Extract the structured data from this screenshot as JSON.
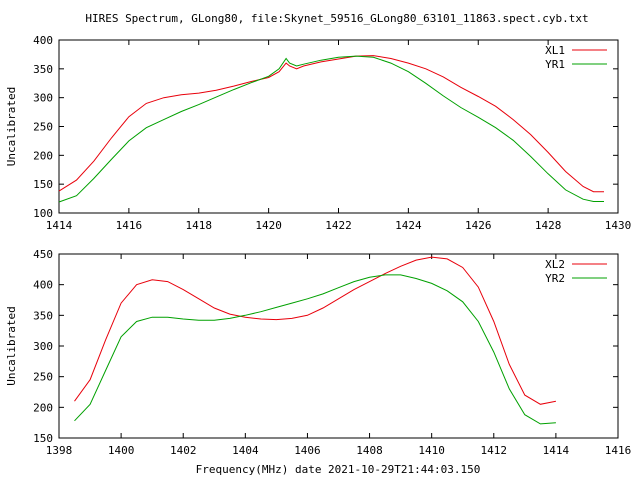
{
  "title": "HIRES Spectrum, GLong80, file:Skynet_59516_GLong80_63101_11863.spect.cyb.txt",
  "xlabel": "Frequency(MHz) date 2021-10-29T21:44:03.150",
  "chart_data": [
    {
      "type": "line",
      "ylabel": "Uncalibrated",
      "xlim": [
        1414,
        1430
      ],
      "ylim": [
        100,
        400
      ],
      "xticks": [
        1414,
        1416,
        1418,
        1420,
        1422,
        1424,
        1426,
        1428,
        1430
      ],
      "yticks": [
        100,
        150,
        200,
        250,
        300,
        350,
        400
      ],
      "legend_position": "top-right",
      "series": [
        {
          "name": "XL1",
          "color": "#e8000b",
          "x": [
            1414.0,
            1414.5,
            1415.0,
            1415.5,
            1416.0,
            1416.5,
            1417.0,
            1417.5,
            1418.0,
            1418.5,
            1419.0,
            1419.5,
            1420.0,
            1420.3,
            1420.5,
            1420.6,
            1420.8,
            1421.0,
            1421.5,
            1422.0,
            1422.5,
            1423.0,
            1423.5,
            1424.0,
            1424.5,
            1425.0,
            1425.5,
            1426.0,
            1426.5,
            1427.0,
            1427.5,
            1428.0,
            1428.5,
            1429.0,
            1429.3,
            1429.6
          ],
          "y": [
            138,
            157,
            190,
            230,
            267,
            290,
            300,
            305,
            308,
            313,
            320,
            328,
            335,
            345,
            360,
            355,
            350,
            355,
            362,
            367,
            372,
            373,
            368,
            360,
            350,
            336,
            318,
            302,
            285,
            262,
            236,
            205,
            172,
            146,
            137,
            137
          ]
        },
        {
          "name": "YR1",
          "color": "#00a000",
          "x": [
            1414.0,
            1414.5,
            1415.0,
            1415.5,
            1416.0,
            1416.5,
            1417.0,
            1417.5,
            1418.0,
            1418.5,
            1419.0,
            1419.5,
            1420.0,
            1420.3,
            1420.5,
            1420.6,
            1420.8,
            1421.0,
            1421.5,
            1422.0,
            1422.5,
            1423.0,
            1423.5,
            1424.0,
            1424.5,
            1425.0,
            1425.5,
            1426.0,
            1426.5,
            1427.0,
            1427.5,
            1428.0,
            1428.5,
            1429.0,
            1429.3,
            1429.6
          ],
          "y": [
            119,
            130,
            160,
            193,
            225,
            248,
            262,
            276,
            288,
            301,
            314,
            326,
            337,
            350,
            368,
            360,
            355,
            358,
            365,
            370,
            372,
            370,
            360,
            345,
            325,
            303,
            283,
            266,
            248,
            226,
            198,
            168,
            140,
            124,
            120,
            120
          ]
        }
      ]
    },
    {
      "type": "line",
      "ylabel": "Uncalibrated",
      "xlim": [
        1398,
        1416
      ],
      "ylim": [
        150,
        450
      ],
      "xticks": [
        1398,
        1400,
        1402,
        1404,
        1406,
        1408,
        1410,
        1412,
        1414,
        1416
      ],
      "yticks": [
        150,
        200,
        250,
        300,
        350,
        400,
        450
      ],
      "legend_position": "top-right",
      "series": [
        {
          "name": "XL2",
          "color": "#e8000b",
          "x": [
            1398.5,
            1399.0,
            1399.5,
            1400.0,
            1400.5,
            1401.0,
            1401.5,
            1402.0,
            1402.5,
            1403.0,
            1403.5,
            1404.0,
            1404.5,
            1405.0,
            1405.5,
            1406.0,
            1406.5,
            1407.0,
            1407.5,
            1408.0,
            1408.5,
            1409.0,
            1409.5,
            1410.0,
            1410.5,
            1411.0,
            1411.5,
            1412.0,
            1412.5,
            1413.0,
            1413.5,
            1414.0
          ],
          "y": [
            210,
            245,
            310,
            370,
            400,
            408,
            405,
            392,
            377,
            362,
            352,
            347,
            344,
            343,
            345,
            350,
            362,
            377,
            392,
            405,
            418,
            430,
            440,
            445,
            442,
            428,
            396,
            340,
            270,
            220,
            205,
            210
          ]
        },
        {
          "name": "YR2",
          "color": "#00a000",
          "x": [
            1398.5,
            1399.0,
            1399.5,
            1400.0,
            1400.5,
            1401.0,
            1401.5,
            1402.0,
            1402.5,
            1403.0,
            1403.5,
            1404.0,
            1404.5,
            1405.0,
            1405.5,
            1406.0,
            1406.5,
            1407.0,
            1407.5,
            1408.0,
            1408.5,
            1409.0,
            1409.5,
            1410.0,
            1410.5,
            1411.0,
            1411.5,
            1412.0,
            1412.5,
            1413.0,
            1413.5,
            1414.0
          ],
          "y": [
            178,
            205,
            260,
            315,
            340,
            347,
            347,
            344,
            342,
            342,
            345,
            350,
            356,
            363,
            370,
            377,
            385,
            395,
            405,
            412,
            416,
            416,
            410,
            402,
            390,
            372,
            340,
            290,
            230,
            188,
            173,
            175
          ]
        }
      ]
    }
  ]
}
